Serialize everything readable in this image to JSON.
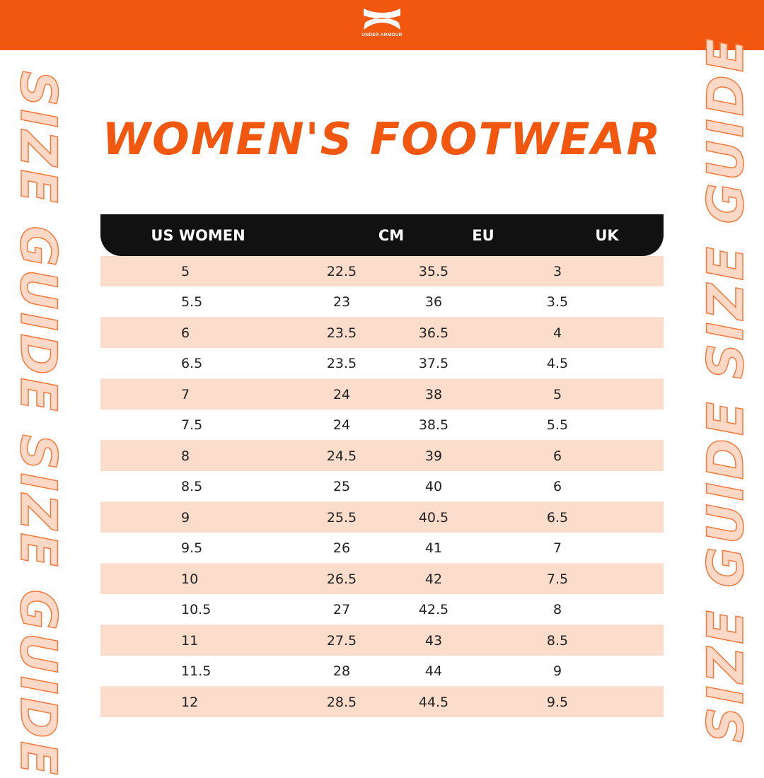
{
  "brand": {
    "name": "UNDER ARMOUR",
    "color": "#f2570f"
  },
  "title": "WOMEN'S FOOTWEAR",
  "side_text": "SIZE GUIDE  SIZE GUIDE",
  "table": {
    "headers": [
      "US WOMEN",
      "CM",
      "EU",
      "UK"
    ],
    "rows": [
      [
        "5",
        "22.5",
        "35.5",
        "3"
      ],
      [
        "5.5",
        "23",
        "36",
        "3.5"
      ],
      [
        "6",
        "23.5",
        "36.5",
        "4"
      ],
      [
        "6.5",
        "23.5",
        "37.5",
        "4.5"
      ],
      [
        "7",
        "24",
        "38",
        "5"
      ],
      [
        "7.5",
        "24",
        "38.5",
        "5.5"
      ],
      [
        "8",
        "24.5",
        "39",
        "6"
      ],
      [
        "8.5",
        "25",
        "40",
        "6"
      ],
      [
        "9",
        "25.5",
        "40.5",
        "6.5"
      ],
      [
        "9.5",
        "26",
        "41",
        "7"
      ],
      [
        "10",
        "26.5",
        "42",
        "7.5"
      ],
      [
        "10.5",
        "27",
        "42.5",
        "8"
      ],
      [
        "11",
        "27.5",
        "43",
        "8.5"
      ],
      [
        "11.5",
        "28",
        "44",
        "9"
      ],
      [
        "12",
        "28.5",
        "44.5",
        "9.5"
      ]
    ]
  }
}
